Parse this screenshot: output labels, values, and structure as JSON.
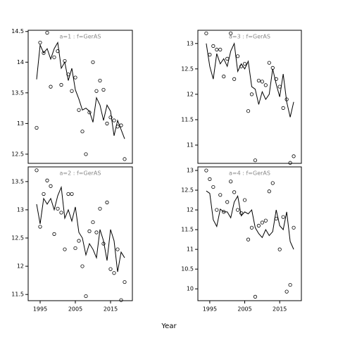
{
  "chart_data": [
    {
      "type": "scatter",
      "label": "a=1 : f=GerAS",
      "x": [
        1994,
        1995,
        1996,
        1997,
        1998,
        1999,
        2000,
        2001,
        2002,
        2003,
        2004,
        2005,
        2006,
        2007,
        2008,
        2009,
        2010,
        2011,
        2012,
        2013,
        2014,
        2015,
        2016,
        2017,
        2018,
        2019
      ],
      "series": [
        {
          "style": "points",
          "color": "#000000",
          "values": [
            12.93,
            14.32,
            14.15,
            14.48,
            13.6,
            14.08,
            14.18,
            13.63,
            14.02,
            13.8,
            13.53,
            13.75,
            13.22,
            12.87,
            12.5,
            13.18,
            14.0,
            13.53,
            13.7,
            13.55,
            13.0,
            13.1,
            13.05,
            12.95,
            12.97,
            12.42
          ]
        },
        {
          "style": "line",
          "color": "#000000",
          "values": [
            13.72,
            14.28,
            14.15,
            14.22,
            14.05,
            14.22,
            14.32,
            13.9,
            14.0,
            13.7,
            13.9,
            13.55,
            13.4,
            13.22,
            13.25,
            13.2,
            13.02,
            13.42,
            13.3,
            13.05,
            13.3,
            13.2,
            12.8,
            13.05,
            12.9,
            12.75
          ]
        }
      ],
      "xlim": [
        1991.6,
        2021.2
      ],
      "ylim": [
        12.35,
        14.52
      ],
      "yticks": [
        12.5,
        13.0,
        13.5,
        14.0,
        14.5
      ]
    },
    {
      "type": "scatter",
      "label": "a=3 : f=GerAS",
      "x": [
        1994,
        1995,
        1996,
        1997,
        1998,
        1999,
        2000,
        2001,
        2002,
        2003,
        2004,
        2005,
        2006,
        2007,
        2008,
        2009,
        2010,
        2011,
        2012,
        2013,
        2014,
        2015,
        2016,
        2017,
        2018,
        2019
      ],
      "series": [
        {
          "style": "points",
          "color": "#000000",
          "values": [
            13.2,
            12.78,
            12.95,
            12.88,
            12.88,
            12.35,
            12.7,
            13.2,
            12.3,
            12.75,
            12.55,
            12.6,
            11.67,
            12.0,
            10.7,
            12.27,
            12.25,
            12.18,
            12.62,
            12.52,
            12.3,
            12.15,
            11.73,
            11.9,
            10.65,
            10.78
          ]
        },
        {
          "style": "line",
          "color": "#000000",
          "values": [
            13.0,
            12.55,
            12.3,
            12.8,
            12.6,
            12.7,
            12.55,
            12.85,
            13.0,
            12.45,
            12.6,
            12.5,
            12.65,
            12.15,
            12.1,
            11.8,
            12.05,
            11.9,
            12.0,
            12.5,
            12.2,
            11.95,
            12.4,
            11.85,
            11.55,
            11.85
          ]
        }
      ],
      "xlim": [
        1991.6,
        2021.2
      ],
      "ylim": [
        10.64,
        13.26
      ],
      "yticks": [
        11.0,
        11.5,
        12.0,
        12.5,
        13.0
      ]
    },
    {
      "type": "scatter",
      "label": "a=2 : f=GerAS",
      "x": [
        1994,
        1995,
        1996,
        1997,
        1998,
        1999,
        2000,
        2001,
        2002,
        2003,
        2004,
        2005,
        2006,
        2007,
        2008,
        2009,
        2010,
        2011,
        2012,
        2013,
        2014,
        2015,
        2016,
        2017,
        2018,
        2019
      ],
      "series": [
        {
          "style": "points",
          "color": "#000000",
          "values": [
            13.7,
            12.7,
            13.28,
            13.52,
            13.42,
            12.57,
            13.02,
            12.95,
            12.3,
            13.28,
            13.28,
            12.32,
            12.45,
            12.0,
            11.47,
            12.62,
            12.78,
            12.6,
            13.02,
            12.4,
            13.13,
            11.95,
            11.88,
            12.3,
            11.4,
            11.72
          ]
        },
        {
          "style": "line",
          "color": "#000000",
          "values": [
            13.1,
            12.75,
            13.2,
            13.1,
            13.2,
            13.0,
            13.25,
            13.4,
            12.85,
            13.0,
            12.8,
            13.05,
            12.6,
            12.5,
            12.2,
            12.4,
            12.3,
            12.15,
            12.65,
            12.45,
            12.1,
            12.65,
            12.45,
            11.9,
            12.25,
            12.15
          ]
        }
      ],
      "xlim": [
        1991.6,
        2021.2
      ],
      "xticks": [
        1995,
        2005,
        2015
      ],
      "ylim": [
        11.39,
        13.76
      ],
      "yticks": [
        11.5,
        12.0,
        12.5,
        13.0,
        13.5
      ]
    },
    {
      "type": "scatter",
      "label": "a=4 : f=GerAS",
      "x": [
        1994,
        1995,
        1996,
        1997,
        1998,
        1999,
        2000,
        2001,
        2002,
        2003,
        2004,
        2005,
        2006,
        2007,
        2008,
        2009,
        2010,
        2011,
        2012,
        2013,
        2014,
        2015,
        2016,
        2017,
        2018,
        2019
      ],
      "series": [
        {
          "style": "points",
          "color": "#000000",
          "values": [
            13.0,
            12.78,
            12.58,
            12.0,
            12.38,
            11.95,
            12.2,
            12.72,
            12.45,
            12.0,
            11.92,
            12.25,
            11.25,
            11.55,
            9.8,
            11.6,
            11.68,
            11.73,
            12.47,
            12.68,
            11.78,
            11.0,
            11.82,
            9.93,
            10.1,
            11.55
          ]
        },
        {
          "style": "line",
          "color": "#000000",
          "values": [
            12.48,
            12.42,
            11.75,
            11.58,
            12.02,
            11.95,
            11.95,
            11.8,
            12.2,
            12.35,
            11.85,
            11.95,
            11.9,
            12.0,
            11.55,
            11.4,
            11.3,
            11.5,
            11.35,
            11.45,
            12.0,
            11.6,
            11.5,
            11.95,
            11.2,
            11.0
          ]
        }
      ],
      "xlim": [
        1991.6,
        2021.2
      ],
      "xticks": [
        1995,
        2005,
        2015
      ],
      "ylim": [
        9.7,
        13.09
      ],
      "yticks": [
        10.0,
        10.5,
        11.0,
        11.5,
        12.0,
        12.5,
        13.0
      ]
    }
  ],
  "xlabel": "Year"
}
